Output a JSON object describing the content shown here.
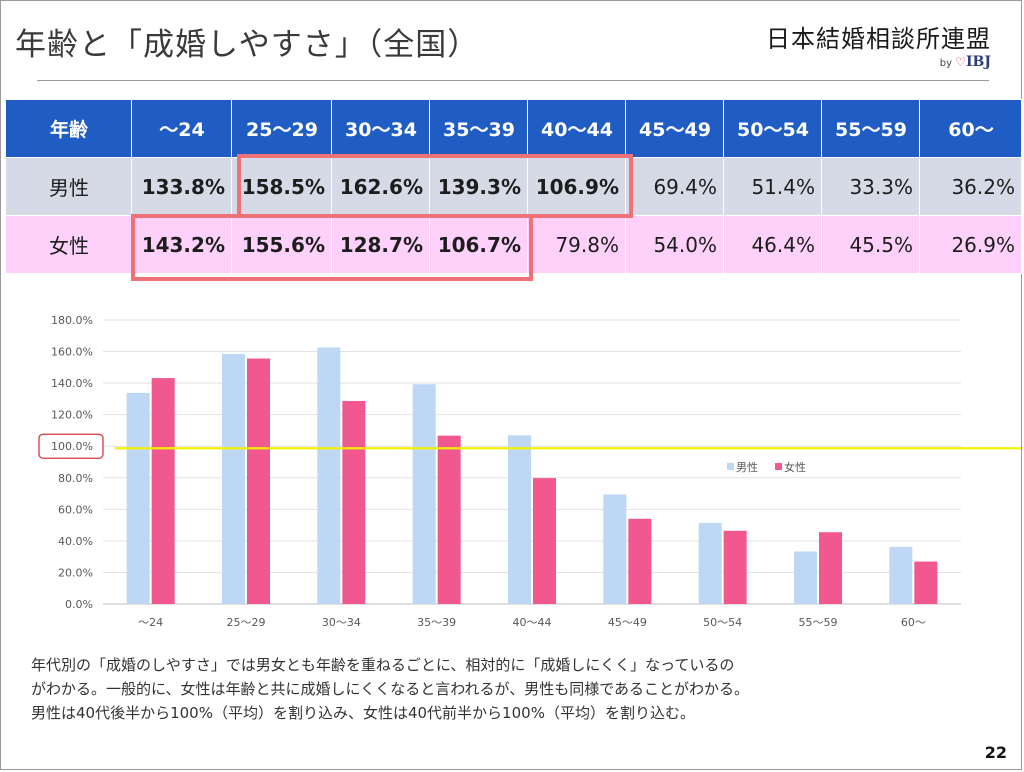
{
  "title": "年齢と「成婚しやすさ」（全国）",
  "logo": {
    "name": "日本結婚相談所連盟",
    "by": "by",
    "heart": "♡",
    "brand": "IBJ"
  },
  "table": {
    "header_label": "年齢",
    "age_groups": [
      "～24",
      "25～29",
      "30～34",
      "35～39",
      "40～44",
      "45～49",
      "50～54",
      "55～59",
      "60～"
    ],
    "male_label": "男性",
    "female_label": "女性",
    "male_values": [
      "133.8%",
      "158.5%",
      "162.6%",
      "139.3%",
      "106.9%",
      "69.4%",
      "51.4%",
      "33.3%",
      "36.2%"
    ],
    "female_values": [
      "143.2%",
      "155.6%",
      "128.7%",
      "106.7%",
      "79.8%",
      "54.0%",
      "46.4%",
      "45.5%",
      "26.9%"
    ],
    "male_bold": [
      true,
      true,
      true,
      true,
      true,
      false,
      false,
      false,
      false
    ],
    "female_bold": [
      true,
      true,
      true,
      true,
      false,
      false,
      false,
      false,
      false
    ]
  },
  "chart_data": {
    "type": "bar",
    "categories": [
      "～24",
      "25～29",
      "30～34",
      "35～39",
      "40～44",
      "45～49",
      "50～54",
      "55～59",
      "60～"
    ],
    "series": [
      {
        "name": "男性",
        "color": "#bdd7f4",
        "values": [
          133.8,
          158.5,
          162.6,
          139.3,
          106.9,
          69.4,
          51.4,
          33.3,
          36.2
        ]
      },
      {
        "name": "女性",
        "color": "#f0588f",
        "values": [
          143.2,
          155.6,
          128.7,
          106.7,
          79.8,
          54.0,
          46.4,
          45.5,
          26.9
        ]
      }
    ],
    "y_ticks": [
      "0.0%",
      "20.0%",
      "40.0%",
      "60.0%",
      "80.0%",
      "100.0%",
      "120.0%",
      "140.0%",
      "160.0%",
      "180.0%"
    ],
    "ylim": [
      0,
      180
    ],
    "reference_line": {
      "value": 100,
      "color": "#f2f200"
    },
    "highlighted_tick": "100.0%",
    "grid": true,
    "legend_position": "right"
  },
  "description": [
    "年代別の「成婚のしやすさ」では男女とも年齢を重ねるごとに、相対的に「成婚しにくく」なっているの",
    "がわかる。一般的に、女性は年齢と共に成婚しにくくなると言われるが、男性も同様であることがわかる。",
    "男性は40代後半から100%（平均）を割り込み、女性は40代前半から100%（平均）を割り込む。"
  ],
  "page_number": "22",
  "colors": {
    "header_blue": "#1f5cc3",
    "male_row": "#d5dae6",
    "female_row": "#fdd1fa",
    "highlight": "#ef7277"
  }
}
